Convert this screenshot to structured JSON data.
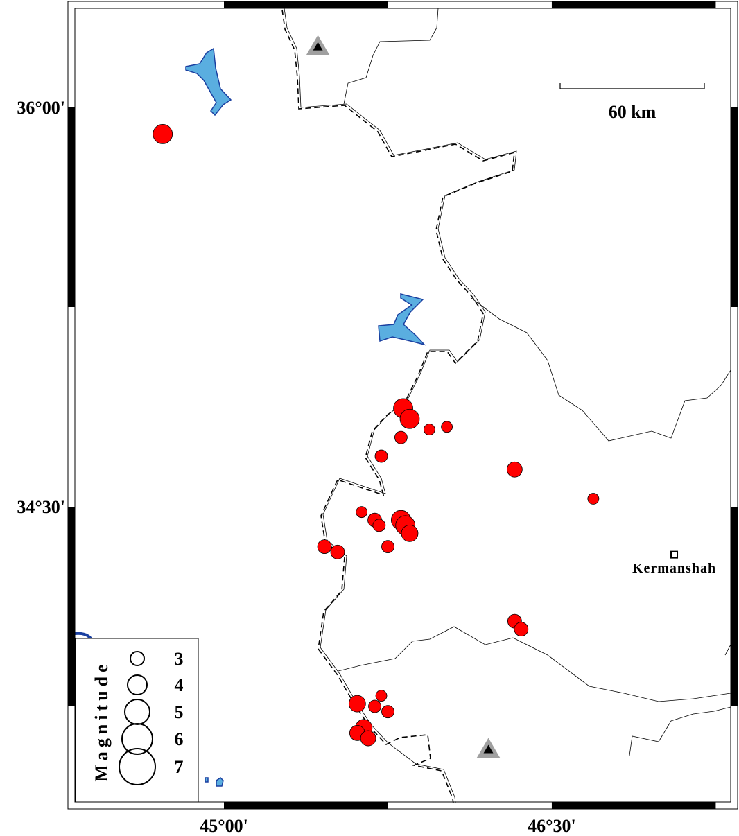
{
  "map": {
    "projection": "linear lon/lat",
    "colors": {
      "event_fill": "#ff0000",
      "water": "#5aaee0",
      "water_outline": "#1a3fa0",
      "station": "#a0a0a0"
    },
    "lon_ticks": [
      {
        "value": 45.0,
        "label": "45°00'"
      },
      {
        "value": 46.5,
        "label": "46°30'"
      }
    ],
    "lat_ticks": [
      {
        "value": 36.0,
        "label": "36°00'"
      },
      {
        "value": 34.5,
        "label": "34°30'"
      }
    ],
    "scale_bar": {
      "label": "60 km"
    },
    "city": {
      "name": "Kermanshah",
      "lon": 47.06,
      "lat": 34.32
    },
    "stations": [
      {
        "lon": 45.43,
        "lat": 36.23,
        "icon": "triangle-station-icon"
      },
      {
        "lon": 46.21,
        "lat": 33.59,
        "icon": "triangle-station-icon"
      }
    ],
    "events": [
      {
        "lon": 44.72,
        "lat": 35.9,
        "mag": 4.0
      },
      {
        "lon": 45.82,
        "lat": 34.87,
        "mag": 4.0
      },
      {
        "lon": 45.85,
        "lat": 34.83,
        "mag": 4.0
      },
      {
        "lon": 45.81,
        "lat": 34.76,
        "mag": 2.75
      },
      {
        "lon": 45.94,
        "lat": 34.79,
        "mag": 2.5
      },
      {
        "lon": 46.02,
        "lat": 34.8,
        "mag": 2.5
      },
      {
        "lon": 45.72,
        "lat": 34.69,
        "mag": 2.75
      },
      {
        "lon": 46.33,
        "lat": 34.64,
        "mag": 3.25
      },
      {
        "lon": 46.69,
        "lat": 34.53,
        "mag": 2.5
      },
      {
        "lon": 45.63,
        "lat": 34.48,
        "mag": 2.5
      },
      {
        "lon": 45.69,
        "lat": 34.45,
        "mag": 3.0
      },
      {
        "lon": 45.71,
        "lat": 34.43,
        "mag": 2.75
      },
      {
        "lon": 45.81,
        "lat": 34.45,
        "mag": 4.0
      },
      {
        "lon": 45.83,
        "lat": 34.43,
        "mag": 4.0
      },
      {
        "lon": 45.85,
        "lat": 34.4,
        "mag": 3.5
      },
      {
        "lon": 45.75,
        "lat": 34.35,
        "mag": 2.75
      },
      {
        "lon": 45.46,
        "lat": 34.35,
        "mag": 3.0
      },
      {
        "lon": 45.52,
        "lat": 34.33,
        "mag": 3.0
      },
      {
        "lon": 46.33,
        "lat": 34.07,
        "mag": 3.0
      },
      {
        "lon": 46.36,
        "lat": 34.04,
        "mag": 3.0
      },
      {
        "lon": 45.61,
        "lat": 33.76,
        "mag": 3.5
      },
      {
        "lon": 45.69,
        "lat": 33.75,
        "mag": 2.75
      },
      {
        "lon": 45.72,
        "lat": 33.79,
        "mag": 2.5
      },
      {
        "lon": 45.75,
        "lat": 33.73,
        "mag": 2.75
      },
      {
        "lon": 45.64,
        "lat": 33.67,
        "mag": 3.5
      },
      {
        "lon": 45.61,
        "lat": 33.65,
        "mag": 3.25
      },
      {
        "lon": 45.66,
        "lat": 33.63,
        "mag": 3.25
      }
    ],
    "legend": {
      "title": "Magnitude",
      "items": [
        {
          "mag": 3,
          "label": "3"
        },
        {
          "mag": 4,
          "label": "4"
        },
        {
          "mag": 5,
          "label": "5"
        },
        {
          "mag": 6,
          "label": "6"
        },
        {
          "mag": 7,
          "label": "7"
        }
      ]
    }
  }
}
